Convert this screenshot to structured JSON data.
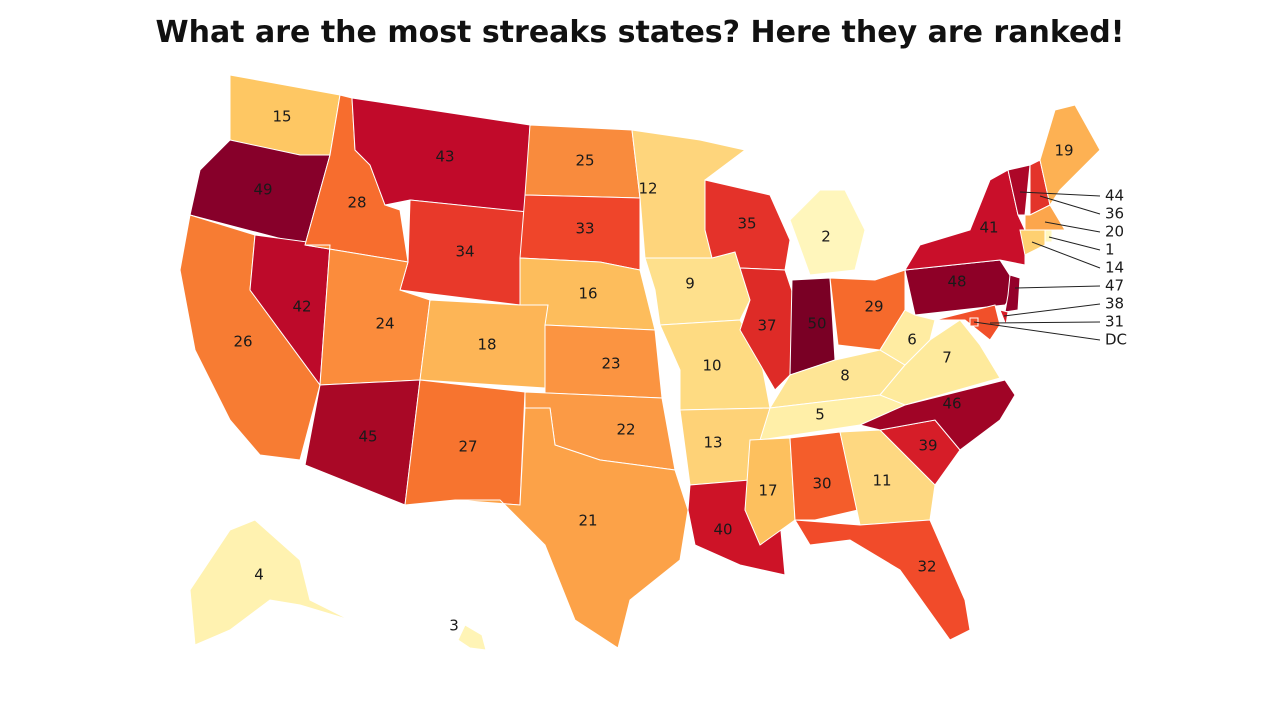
{
  "title": "What are the most streaks states? Here they are ranked!",
  "regions": [
    {
      "label": "15",
      "color": "#fec763"
    },
    {
      "label": "49",
      "color": "#87002a"
    },
    {
      "label": "26",
      "color": "#f77c33"
    },
    {
      "label": "42",
      "color": "#bd0a2a"
    },
    {
      "label": "28",
      "color": "#f76d2e"
    },
    {
      "label": "43",
      "color": "#c10a2a"
    },
    {
      "label": "34",
      "color": "#e8392a"
    },
    {
      "label": "24",
      "color": "#fb8c3c"
    },
    {
      "label": "45",
      "color": "#a90826"
    },
    {
      "label": "18",
      "color": "#fdb556"
    },
    {
      "label": "27",
      "color": "#f7742f"
    },
    {
      "label": "25",
      "color": "#f98b3d"
    },
    {
      "label": "33",
      "color": "#ef452a"
    },
    {
      "label": "16",
      "color": "#fdbd5c"
    },
    {
      "label": "23",
      "color": "#fb9441"
    },
    {
      "label": "22",
      "color": "#fb9a45"
    },
    {
      "label": "21",
      "color": "#fca248"
    },
    {
      "label": "12",
      "color": "#fed57c"
    },
    {
      "label": "9",
      "color": "#fee08c"
    },
    {
      "label": "10",
      "color": "#fedb82"
    },
    {
      "label": "13",
      "color": "#fed277"
    },
    {
      "label": "40",
      "color": "#cd1327"
    },
    {
      "label": "35",
      "color": "#e4322a"
    },
    {
      "label": "37",
      "color": "#de2b27"
    },
    {
      "label": "2",
      "color": "#fff6bc"
    },
    {
      "label": "50",
      "color": "#7a0025"
    },
    {
      "label": "29",
      "color": "#f66a2c"
    },
    {
      "label": "8",
      "color": "#fee595"
    },
    {
      "label": "5",
      "color": "#ffefa8"
    },
    {
      "label": "17",
      "color": "#fdc05e"
    },
    {
      "label": "30",
      "color": "#f45d2b"
    },
    {
      "label": "11",
      "color": "#fed881"
    },
    {
      "label": "32",
      "color": "#f14b2a"
    },
    {
      "label": "39",
      "color": "#d61d28"
    },
    {
      "label": "46",
      "color": "#a00426"
    },
    {
      "label": "7",
      "color": "#feea9c"
    },
    {
      "label": "6",
      "color": "#ffeca2"
    },
    {
      "label": "48",
      "color": "#8e0027"
    },
    {
      "label": "41",
      "color": "#c90f2a"
    },
    {
      "label": "44",
      "color": "#ad0728"
    },
    {
      "label": "36",
      "color": "#e3342a"
    },
    {
      "label": "19",
      "color": "#fdb153"
    },
    {
      "label": "20",
      "color": "#fca64c"
    },
    {
      "label": "1",
      "color": "#fff8c0"
    },
    {
      "label": "14",
      "color": "#fed071"
    },
    {
      "label": "47",
      "color": "#94002a"
    },
    {
      "label": "38",
      "color": "#d81c28"
    },
    {
      "label": "31",
      "color": "#f1502a"
    },
    {
      "label": "DC",
      "color": "#f1502a"
    },
    {
      "label": "4",
      "color": "#fff2b0"
    },
    {
      "label": "3",
      "color": "#fff4b6"
    }
  ]
}
